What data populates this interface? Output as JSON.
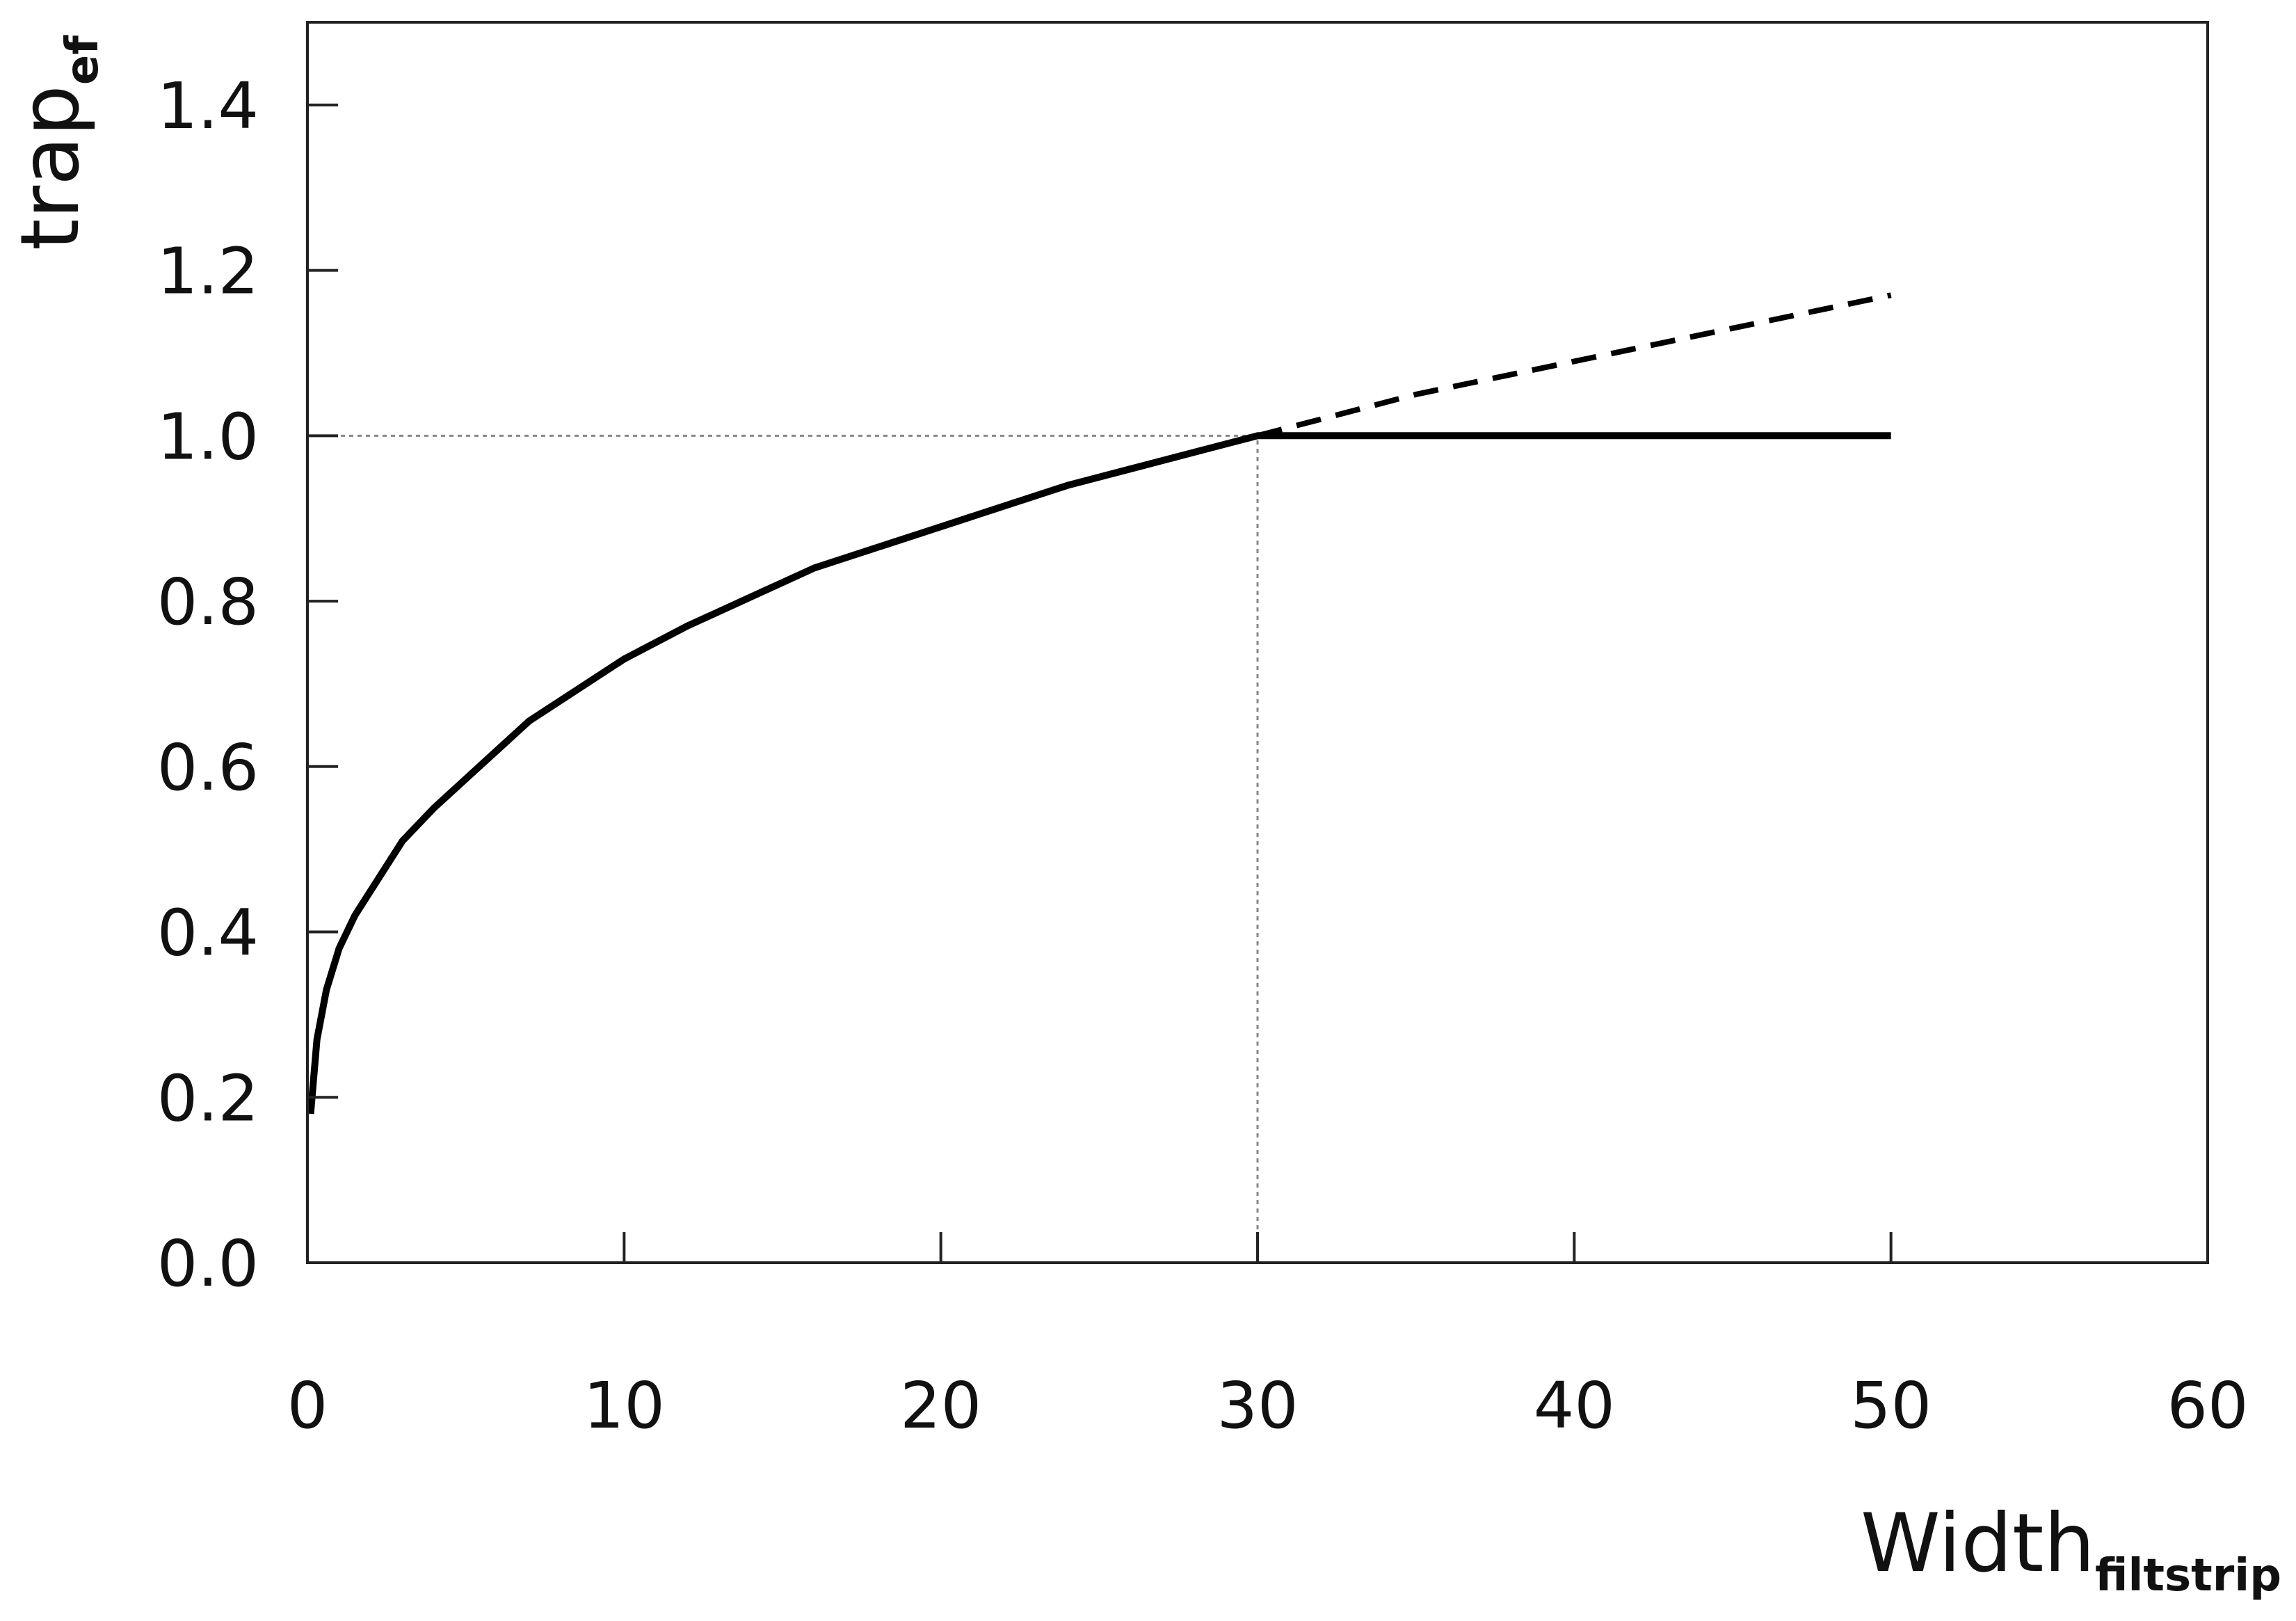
{
  "chart_data": {
    "type": "line",
    "title": "",
    "xlabel": "Width",
    "xlabel_subscript": "filtstrip",
    "ylabel": "trap",
    "ylabel_subscript": "ef",
    "xlim": [
      0,
      60
    ],
    "ylim": [
      0,
      1.5
    ],
    "xticks": [
      0,
      10,
      20,
      30,
      40,
      50,
      60
    ],
    "xtick_labels": [
      "0",
      "10",
      "20",
      "30",
      "40",
      "50",
      "60"
    ],
    "yticks": [
      0,
      0.2,
      0.4,
      0.6,
      0.8,
      1.0,
      1.2,
      1.4
    ],
    "ytick_labels": [
      "0.0",
      "0.2",
      "0.4",
      "0.6",
      "0.8",
      "1.0",
      "1.2",
      "1.4"
    ],
    "grid": false,
    "legend": "none",
    "series": [
      {
        "style": "solid",
        "color": "#000000",
        "x": [
          0.1,
          0.3,
          0.6,
          1,
          1.5,
          2,
          3,
          4,
          5,
          6,
          7,
          8,
          10,
          12,
          14,
          16,
          18,
          20,
          22,
          24,
          26,
          28,
          30,
          35,
          40,
          45,
          50
        ],
        "y": [
          0.18,
          0.27,
          0.33,
          0.38,
          0.42,
          0.45,
          0.51,
          0.55,
          0.585,
          0.62,
          0.655,
          0.68,
          0.73,
          0.77,
          0.805,
          0.84,
          0.865,
          0.89,
          0.915,
          0.94,
          0.96,
          0.98,
          1.0,
          1.0,
          1.0,
          1.0,
          1.0
        ]
      },
      {
        "style": "dashed",
        "color": "#000000",
        "x": [
          30,
          35,
          40,
          45,
          50
        ],
        "y": [
          1.0,
          1.05,
          1.09,
          1.13,
          1.17
        ]
      }
    ],
    "reference_lines": [
      {
        "orientation": "horizontal",
        "value": 1.0,
        "from": 0,
        "to": 30,
        "style": "dotted",
        "color": "#888888"
      },
      {
        "orientation": "vertical",
        "value": 30,
        "from": 0,
        "to": 1.0,
        "style": "dotted",
        "color": "#888888"
      }
    ]
  }
}
